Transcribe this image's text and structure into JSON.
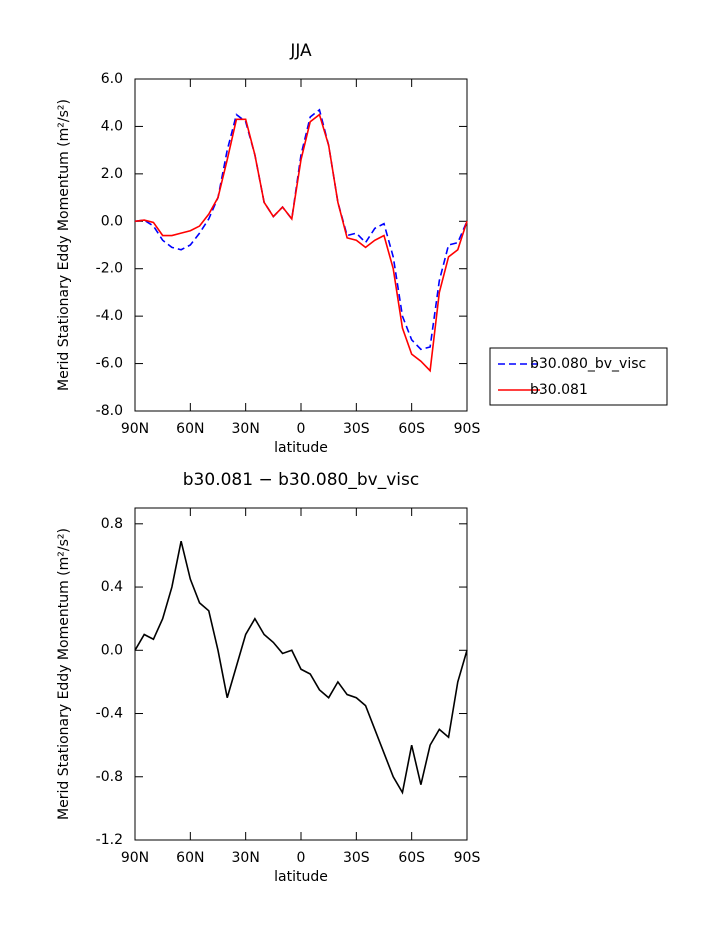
{
  "chart_data": [
    {
      "type": "line",
      "title": "JJA",
      "xlabel": "latitude",
      "ylabel": "Merid Stationary Eddy Momentum (m²/s²)",
      "x": [
        90,
        85,
        80,
        75,
        70,
        65,
        60,
        55,
        50,
        45,
        40,
        35,
        30,
        25,
        20,
        15,
        10,
        5,
        0,
        -5,
        -10,
        -15,
        -20,
        -25,
        -30,
        -35,
        -40,
        -45,
        -50,
        -55,
        -60,
        -65,
        -70,
        -75,
        -80,
        -85,
        -90
      ],
      "xlim": [
        90,
        -90
      ],
      "xticks": [
        {
          "value": 90,
          "label": "90N"
        },
        {
          "value": 60,
          "label": "60N"
        },
        {
          "value": 30,
          "label": "30N"
        },
        0,
        {
          "value": -30,
          "label": "30S"
        },
        {
          "value": -60,
          "label": "60S"
        },
        {
          "value": -90,
          "label": "90S"
        }
      ],
      "ylim": [
        -8,
        6
      ],
      "yticks": [
        {
          "value": -8,
          "label": "-8.0"
        },
        {
          "value": -6,
          "label": "-6.0"
        },
        {
          "value": -4,
          "label": "-4.0"
        },
        {
          "value": -2,
          "label": "-2.0"
        },
        {
          "value": 0,
          "label": "0.0"
        },
        {
          "value": 2,
          "label": "2.0"
        },
        {
          "value": 4,
          "label": "4.0"
        },
        {
          "value": 6,
          "label": "6.0"
        }
      ],
      "series": [
        {
          "name": "b30.080_bv_visc",
          "color": "#0000ff",
          "dashed": true,
          "values": [
            0,
            0.05,
            -0.2,
            -0.8,
            -1.1,
            -1.2,
            -1.0,
            -0.5,
            0.1,
            1.0,
            3.0,
            4.5,
            4.2,
            2.8,
            0.8,
            0.2,
            0.6,
            0.1,
            2.8,
            4.4,
            4.7,
            3.2,
            0.8,
            -0.6,
            -0.5,
            -0.9,
            -0.3,
            -0.1,
            -1.5,
            -4.0,
            -5.0,
            -5.4,
            -5.3,
            -2.5,
            -1.0,
            -0.9,
            0
          ]
        },
        {
          "name": "b30.081",
          "color": "#ff0000",
          "dashed": false,
          "values": [
            0,
            0.05,
            -0.05,
            -0.6,
            -0.6,
            -0.5,
            -0.4,
            -0.2,
            0.3,
            1.0,
            2.6,
            4.3,
            4.3,
            2.8,
            0.8,
            0.2,
            0.6,
            0.1,
            2.6,
            4.2,
            4.5,
            3.2,
            0.8,
            -0.7,
            -0.8,
            -1.1,
            -0.8,
            -0.6,
            -2.0,
            -4.5,
            -5.6,
            -5.9,
            -6.3,
            -3.0,
            -1.5,
            -1.2,
            0
          ]
        }
      ]
    },
    {
      "type": "line",
      "title": "b30.081 − b30.080_bv_visc",
      "xlabel": "latitude",
      "ylabel": "Merid Stationary Eddy Momentum (m²/s²)",
      "x": [
        90,
        85,
        80,
        75,
        70,
        65,
        60,
        55,
        50,
        45,
        40,
        35,
        30,
        25,
        20,
        15,
        10,
        5,
        0,
        -5,
        -10,
        -15,
        -20,
        -25,
        -30,
        -35,
        -40,
        -45,
        -50,
        -55,
        -60,
        -65,
        -70,
        -75,
        -80,
        -85,
        -90
      ],
      "xlim": [
        90,
        -90
      ],
      "xticks": [
        {
          "value": 90,
          "label": "90N"
        },
        {
          "value": 60,
          "label": "60N"
        },
        {
          "value": 30,
          "label": "30N"
        },
        0,
        {
          "value": -30,
          "label": "30S"
        },
        {
          "value": -60,
          "label": "60S"
        },
        {
          "value": -90,
          "label": "90S"
        }
      ],
      "ylim": [
        -1.2,
        0.9
      ],
      "yticks": [
        {
          "value": -1.2,
          "label": "-1.2"
        },
        {
          "value": -0.8,
          "label": "-0.8"
        },
        {
          "value": -0.4,
          "label": "-0.4"
        },
        {
          "value": 0,
          "label": "0.0"
        },
        0.4,
        0.8
      ],
      "color": "#000000",
      "values": [
        0,
        0.1,
        0.07,
        0.2,
        0.4,
        0.69,
        0.45,
        0.3,
        0.25,
        0,
        -0.3,
        -0.1,
        0.1,
        0.2,
        0.1,
        0.05,
        -0.02,
        0,
        -0.12,
        -0.15,
        -0.25,
        -0.3,
        -0.2,
        -0.28,
        -0.3,
        -0.35,
        -0.5,
        -0.65,
        -0.8,
        -0.9,
        -0.6,
        -0.85,
        -0.6,
        -0.5,
        -0.55,
        -0.2,
        0
      ]
    }
  ]
}
